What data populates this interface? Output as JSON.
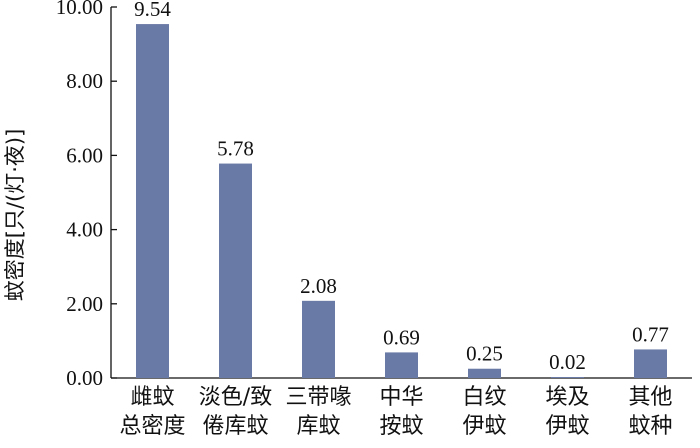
{
  "chart_data": {
    "type": "bar",
    "ylabel": "蚊密度[只/(灯·夜)]",
    "ylim": [
      0,
      10
    ],
    "yticks": [
      "0.00",
      "2.00",
      "4.00",
      "6.00",
      "8.00",
      "10.00"
    ],
    "grid": false,
    "categories": [
      [
        "雌蚊",
        "总密度"
      ],
      [
        "淡色/致",
        "倦库蚊"
      ],
      [
        "三带喙",
        "库蚊"
      ],
      [
        "中华",
        "按蚊"
      ],
      [
        "白纹",
        "伊蚊"
      ],
      [
        "埃及",
        "伊蚊"
      ],
      [
        "其他",
        "蚊种"
      ]
    ],
    "values": [
      9.54,
      5.78,
      2.08,
      0.69,
      0.25,
      0.02,
      0.77
    ],
    "data_labels": [
      "9.54",
      "5.78",
      "2.08",
      "0.69",
      "0.25",
      "0.02",
      "0.77"
    ],
    "bar_color": "#6a7aa6"
  }
}
